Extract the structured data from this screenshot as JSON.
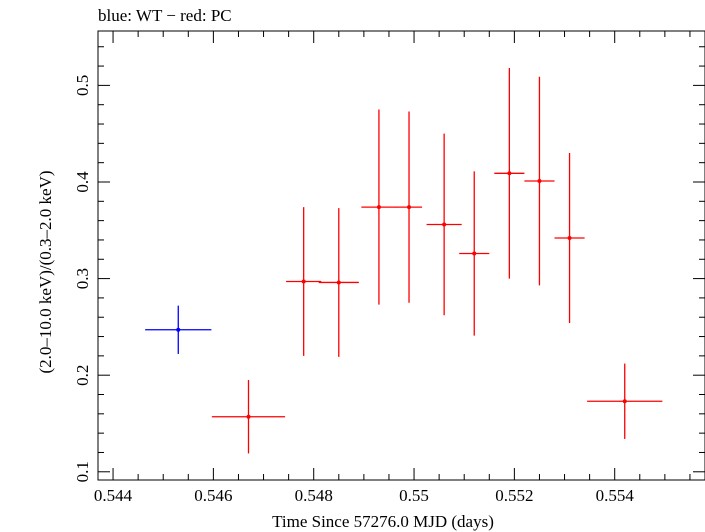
{
  "chart_data": {
    "type": "scatter",
    "title": "blue: WT − red: PC",
    "xlabel": "Time Since 57276.0 MJD (days)",
    "ylabel": "(2.0–10.0 keV)/(0.3–2.0 keV)",
    "xlim": [
      0.5437,
      0.5558
    ],
    "ylim": [
      0.0915,
      0.5563
    ],
    "x_ticks": [
      0.544,
      0.546,
      0.548,
      0.55,
      0.552,
      0.554
    ],
    "x_tick_labels": [
      "0.544",
      "0.546",
      "0.548",
      "0.55",
      "0.552",
      "0.554"
    ],
    "y_ticks": [
      0.1,
      0.2,
      0.3,
      0.4,
      0.5
    ],
    "y_tick_labels": [
      "0.1",
      "0.2",
      "0.3",
      "0.4",
      "0.5"
    ],
    "grid": false,
    "series": [
      {
        "name": "WT",
        "color": "#0000ff",
        "points": [
          {
            "x": 0.5453,
            "xerr": 0.00066,
            "y": 0.247,
            "yerr_low": 0.025,
            "yerr_high": 0.025
          }
        ]
      },
      {
        "name": "PC",
        "color": "#ff0000",
        "points": [
          {
            "x": 0.5467,
            "xerr": 0.00073,
            "y": 0.157,
            "yerr_low": 0.038,
            "yerr_high": 0.038
          },
          {
            "x": 0.5478,
            "xerr": 0.00035,
            "y": 0.297,
            "yerr_low": 0.077,
            "yerr_high": 0.077
          },
          {
            "x": 0.5485,
            "xerr": 0.0004,
            "y": 0.296,
            "yerr_low": 0.077,
            "yerr_high": 0.077
          },
          {
            "x": 0.5493,
            "xerr": 0.00035,
            "y": 0.374,
            "yerr_low": 0.101,
            "yerr_high": 0.101
          },
          {
            "x": 0.5499,
            "xerr": 0.00026,
            "y": 0.374,
            "yerr_low": 0.099,
            "yerr_high": 0.099
          },
          {
            "x": 0.5506,
            "xerr": 0.00035,
            "y": 0.356,
            "yerr_low": 0.094,
            "yerr_high": 0.094
          },
          {
            "x": 0.5512,
            "xerr": 0.0003,
            "y": 0.326,
            "yerr_low": 0.085,
            "yerr_high": 0.085
          },
          {
            "x": 0.5519,
            "xerr": 0.0003,
            "y": 0.409,
            "yerr_low": 0.109,
            "yerr_high": 0.109
          },
          {
            "x": 0.5525,
            "xerr": 0.0003,
            "y": 0.401,
            "yerr_low": 0.108,
            "yerr_high": 0.108
          },
          {
            "x": 0.5531,
            "xerr": 0.0003,
            "y": 0.342,
            "yerr_low": 0.088,
            "yerr_high": 0.088
          },
          {
            "x": 0.5542,
            "xerr": 0.00075,
            "y": 0.173,
            "yerr_low": 0.039,
            "yerr_high": 0.039
          }
        ]
      }
    ]
  }
}
